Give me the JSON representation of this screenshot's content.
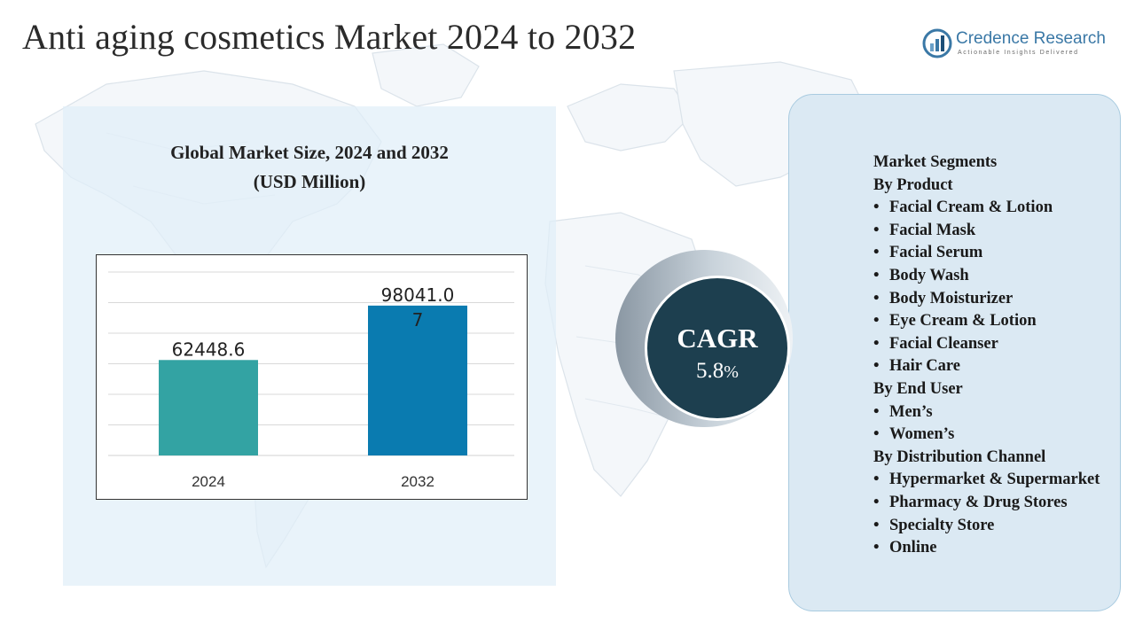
{
  "title": "Anti aging cosmetics Market 2024 to 2032",
  "logo": {
    "name": "Credence Research",
    "tagline": "Actionable Insights Delivered"
  },
  "chart_title": {
    "line1": "Global Market Size, 2024 and 2032",
    "line2": "(USD Million)"
  },
  "chart_data": {
    "type": "bar",
    "categories": [
      "2024",
      "2032"
    ],
    "values": [
      62448.6,
      98041.07
    ],
    "value_labels": [
      "62448.6",
      "98041.07"
    ],
    "bar_colors": [
      "#33a3a3",
      "#0a7bb0"
    ],
    "ylim": [
      0,
      120000
    ],
    "grid": true,
    "legend": "none"
  },
  "cagr": {
    "label": "CAGR",
    "value": "5.8",
    "unit": "%"
  },
  "segments": [
    {
      "kind": "h",
      "text": "Market Segments"
    },
    {
      "kind": "h",
      "text": "By Product"
    },
    {
      "kind": "i",
      "text": "Facial Cream & Lotion"
    },
    {
      "kind": "i",
      "text": "Facial Mask"
    },
    {
      "kind": "i",
      "text": "Facial Serum"
    },
    {
      "kind": "i",
      "text": "Body Wash"
    },
    {
      "kind": "i",
      "text": "Body Moisturizer"
    },
    {
      "kind": "i",
      "text": "Eye Cream & Lotion"
    },
    {
      "kind": "i",
      "text": "Facial Cleanser"
    },
    {
      "kind": "i",
      "text": "Hair Care"
    },
    {
      "kind": "h",
      "text": "By End User"
    },
    {
      "kind": "i",
      "text": "Men’s"
    },
    {
      "kind": "i",
      "text": "Women’s"
    },
    {
      "kind": "h",
      "text": "By Distribution Channel"
    },
    {
      "kind": "i",
      "text": "Hypermarket & Supermarket"
    },
    {
      "kind": "i",
      "text": "Pharmacy & Drug Stores"
    },
    {
      "kind": "i",
      "text": "Specialty Store"
    },
    {
      "kind": "i",
      "text": "Online"
    }
  ]
}
